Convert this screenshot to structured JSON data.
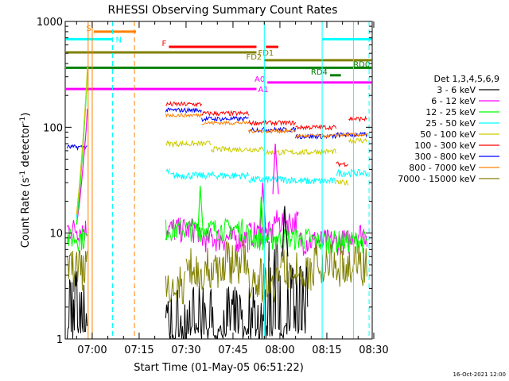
{
  "chart_data": {
    "type": "line",
    "title": "RHESSI Observing Summary Count Rates",
    "xlabel": "Start Time (01-May-05 06:51:22)",
    "ylabel_main": "Count Rate (s",
    "ylabel_sup1": "-1",
    "ylabel_mid": " detector",
    "ylabel_sup2": "-1",
    "ylabel_end": ")",
    "yscale": "log",
    "ylim": [
      1,
      1000
    ],
    "xlim_min": [
      411.37,
      509.5
    ],
    "x_ticks": [
      {
        "label": "07:00",
        "min": 420
      },
      {
        "label": "07:15",
        "min": 435
      },
      {
        "label": "07:30",
        "min": 450
      },
      {
        "label": "07:45",
        "min": 465
      },
      {
        "label": "08:00",
        "min": 480
      },
      {
        "label": "08:15",
        "min": 495
      },
      {
        "label": "08:30",
        "min": 510
      }
    ],
    "y_ticks": [
      {
        "label": "1",
        "value": 1
      },
      {
        "label": "10",
        "value": 10
      },
      {
        "label": "100",
        "value": 100
      },
      {
        "label": "1000",
        "value": 1000
      }
    ],
    "legend_title": "Det 1,3,4,5,6,9",
    "legend_position": "right",
    "series": [
      {
        "name": "3 - 6 keV",
        "color": "#000000",
        "segments": [
          [
            412,
            418.5,
            2.5
          ],
          [
            443.5,
            476,
            1.7
          ],
          [
            476,
            482,
            5
          ],
          [
            482,
            489,
            3
          ]
        ]
      },
      {
        "name": "6 - 12 keV",
        "color": "#ff00ff",
        "segments": [
          [
            412,
            418.5,
            11
          ],
          [
            443.5,
            454,
            11
          ],
          [
            454,
            470,
            9
          ],
          [
            470,
            478,
            10
          ],
          [
            478,
            486,
            13
          ],
          [
            486,
            503,
            8.5
          ],
          [
            503,
            508,
            10
          ]
        ]
      },
      {
        "name": "12 - 25 keV",
        "color": "#00ff00",
        "segments": [
          [
            412,
            418.5,
            9
          ],
          [
            443.5,
            470,
            11
          ],
          [
            470,
            490,
            9
          ],
          [
            490,
            508,
            8.5
          ]
        ]
      },
      {
        "name": "25 - 50 keV",
        "color": "#00ffff",
        "segments": [
          [
            443.5,
            445,
            38
          ],
          [
            445,
            470,
            35
          ],
          [
            470,
            485,
            32
          ],
          [
            485,
            498,
            31
          ],
          [
            498,
            508,
            37
          ]
        ]
      },
      {
        "name": "50 - 100 keV",
        "color": "#cccc00",
        "segments": [
          [
            443.5,
            458,
            70
          ],
          [
            458,
            475,
            62
          ],
          [
            475,
            490,
            58
          ],
          [
            490,
            498,
            59
          ],
          [
            498,
            502,
            30
          ],
          [
            502,
            508,
            75
          ]
        ]
      },
      {
        "name": "100 - 300 keV",
        "color": "#ff0000",
        "segments": [
          [
            443.5,
            455,
            165
          ],
          [
            455,
            470,
            135
          ],
          [
            470,
            485,
            110
          ],
          [
            485,
            498,
            100
          ],
          [
            498,
            502,
            45
          ],
          [
            502,
            508,
            120
          ]
        ]
      },
      {
        "name": "300 - 800 keV",
        "color": "#0000ff",
        "segments": [
          [
            412,
            418.5,
            65
          ],
          [
            443.5,
            455,
            145
          ],
          [
            455,
            470,
            120
          ],
          [
            470,
            485,
            95
          ],
          [
            485,
            498,
            82
          ],
          [
            498,
            508,
            85
          ]
        ]
      },
      {
        "name": "800 - 7000 keV",
        "color": "#ff8000",
        "segments": [
          [
            443.5,
            455,
            130
          ],
          [
            455,
            470,
            110
          ],
          [
            470,
            485,
            92
          ],
          [
            485,
            498,
            83
          ],
          [
            498,
            508,
            85
          ]
        ]
      },
      {
        "name": "7000 - 15000 keV",
        "color": "#808000",
        "segments": [
          [
            412,
            418.5,
            5
          ],
          [
            443.5,
            450,
            3.5
          ],
          [
            450,
            462,
            5
          ],
          [
            462,
            470,
            6
          ],
          [
            470,
            480,
            4
          ],
          [
            480,
            490,
            5
          ],
          [
            490,
            508,
            5.5
          ]
        ]
      }
    ],
    "rise_curves": [
      {
        "series": "6 - 12 keV",
        "color": "#ff00ff",
        "points": [
          [
            415,
            12
          ],
          [
            416,
            20
          ],
          [
            417,
            40
          ],
          [
            418,
            90
          ],
          [
            418.5,
            150
          ]
        ]
      },
      {
        "series": "12 - 25 keV",
        "color": "#00ff00",
        "points": [
          [
            415,
            12
          ],
          [
            416,
            25
          ],
          [
            417,
            60
          ],
          [
            418,
            180
          ],
          [
            418.5,
            330
          ]
        ]
      },
      {
        "series": "25 - 50 keV",
        "color": "#00ffff",
        "points": [
          [
            415,
            14
          ],
          [
            416,
            30
          ],
          [
            417,
            70
          ],
          [
            418,
            200
          ],
          [
            418.5,
            300
          ]
        ]
      },
      {
        "series": "50 - 100 keV",
        "color": "#cccc00",
        "points": [
          [
            415,
            15
          ],
          [
            416,
            30
          ],
          [
            417,
            70
          ],
          [
            418,
            200
          ],
          [
            418.5,
            380
          ]
        ]
      }
    ],
    "spikes": [
      {
        "series": "12 - 25 keV",
        "color": "#00ff00",
        "x": 454.5,
        "peak": 28
      },
      {
        "series": "6 - 12 keV",
        "color": "#ff00ff",
        "x": 474.5,
        "peak": 30
      },
      {
        "series": "6 - 12 keV",
        "color": "#ff00ff",
        "x": 478.5,
        "peak": 70
      },
      {
        "series": "3 - 6 keV",
        "color": "#000000",
        "x": 481.5,
        "peak": 18
      },
      {
        "series": "12 - 25 keV",
        "color": "#00ff00",
        "x": 474,
        "peak": 22
      }
    ],
    "vlines": [
      {
        "x": 418.7,
        "color": "#ff8000",
        "style": "solid"
      },
      {
        "x": 420.0,
        "color": "#ff8000",
        "style": "solid"
      },
      {
        "x": 426.5,
        "color": "#00ffff",
        "style": "dashed"
      },
      {
        "x": 433.5,
        "color": "#ff8000",
        "style": "dashed"
      },
      {
        "x": 475.0,
        "color": "#00ffff",
        "style": "solid"
      },
      {
        "x": 493.5,
        "color": "#00ffff",
        "style": "solid"
      },
      {
        "x": 503.5,
        "color": "#00ffff",
        "style": "solid"
      },
      {
        "x": 508.5,
        "color": "#00ffff",
        "style": "dashed"
      }
    ],
    "flag_bars": [
      {
        "label": "S",
        "color": "#ff8000",
        "y_value": 800,
        "segments": [
          [
            420.5,
            434.0
          ]
        ]
      },
      {
        "label": "N",
        "color": "#00ffff",
        "y_value": 680,
        "segments": [
          [
            411.6,
            426.5
          ],
          [
            493.5,
            509.3
          ]
        ]
      },
      {
        "label": "F",
        "color": "#ff0000",
        "y_value": 575,
        "segments": [
          [
            444.5,
            472.5
          ],
          [
            475.5,
            479.5
          ]
        ]
      },
      {
        "label": "FD1",
        "color": "#808000",
        "y_value": 510,
        "segments": [
          [
            411.6,
            472.5
          ]
        ]
      },
      {
        "label": "FD2",
        "color": "#808000",
        "y_value": 430,
        "segments": [
          [
            475.0,
            509.3
          ]
        ]
      },
      {
        "label": "RD0",
        "color": "#008000",
        "y_value": 365,
        "segments": [
          [
            411.6,
            509.3
          ]
        ]
      },
      {
        "label": "RD4",
        "color": "#008000",
        "y_value": 310,
        "segments": [
          [
            496.0,
            499.5
          ]
        ]
      },
      {
        "label": "A0",
        "color": "#ff00ff",
        "y_value": 265,
        "segments": [
          [
            476.0,
            509.3
          ]
        ]
      },
      {
        "label": "A1",
        "color": "#ff00ff",
        "y_value": 230,
        "segments": [
          [
            411.6,
            472.5
          ]
        ]
      }
    ],
    "timestamp": "16-Oct-2021 12:00"
  }
}
